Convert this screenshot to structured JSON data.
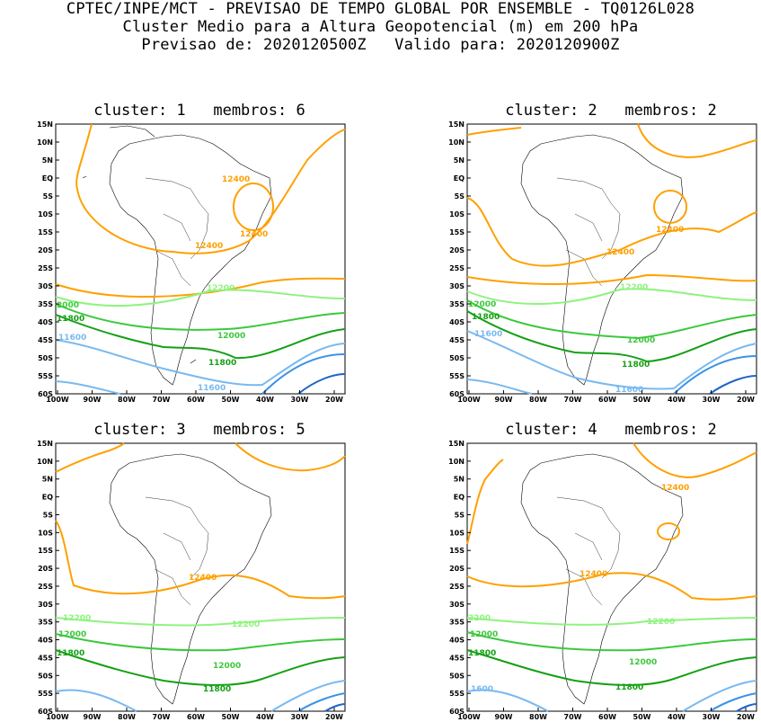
{
  "header": {
    "line1": "CPTEC/INPE/MCT - PREVISAO DE TEMPO GLOBAL POR ENSEMBLE - TQ0126L028",
    "line2": "Cluster Medio para a Altura Geopotencial (m) em 200 hPa",
    "line3": "Previsao de: 2020120500Z   Valido para: 2020120900Z"
  },
  "axes": {
    "lat_labels": [
      "15N",
      "10N",
      "5N",
      "EQ",
      "5S",
      "10S",
      "15S",
      "20S",
      "25S",
      "30S",
      "35S",
      "40S",
      "45S",
      "50S",
      "55S",
      "60S"
    ],
    "lon_labels": [
      "100W",
      "90W",
      "80W",
      "70W",
      "60W",
      "50W",
      "40W",
      "30W",
      "20W"
    ]
  },
  "contour_colors": {
    "c12400": "#ffa000",
    "c12200": "#8ef37e",
    "c12000": "#3cc83c",
    "c11800": "#14a014",
    "c11600": "#78b9f0",
    "c11400": "#3c91e6",
    "c11200": "#1e64c8"
  },
  "panels": [
    {
      "title": "cluster: 1   membros: 6",
      "labels": [
        {
          "text": "12400",
          "color": "#ffa000"
        },
        {
          "text": "12400",
          "color": "#ffa000"
        },
        {
          "text": "12400",
          "color": "#ffa000"
        },
        {
          "text": "12200",
          "color": "#8ef37e"
        },
        {
          "text": "2000",
          "color": "#3cc83c"
        },
        {
          "text": "12000",
          "color": "#3cc83c"
        },
        {
          "text": "11800",
          "color": "#14a014"
        },
        {
          "text": "11800",
          "color": "#14a014"
        },
        {
          "text": "11600",
          "color": "#78b9f0"
        },
        {
          "text": "11600",
          "color": "#78b9f0"
        }
      ]
    },
    {
      "title": "cluster: 2   membros: 2",
      "labels": [
        {
          "text": "12400",
          "color": "#ffa000"
        },
        {
          "text": "12400",
          "color": "#ffa000"
        },
        {
          "text": "12200",
          "color": "#8ef37e"
        },
        {
          "text": "12000",
          "color": "#3cc83c"
        },
        {
          "text": "12000",
          "color": "#3cc83c"
        },
        {
          "text": "11800",
          "color": "#14a014"
        },
        {
          "text": "11800",
          "color": "#14a014"
        },
        {
          "text": "11600",
          "color": "#78b9f0"
        },
        {
          "text": "11600",
          "color": "#78b9f0"
        }
      ]
    },
    {
      "title": "cluster: 3   membros: 5",
      "labels": [
        {
          "text": "12400",
          "color": "#ffa000"
        },
        {
          "text": "12200",
          "color": "#8ef37e"
        },
        {
          "text": "12200",
          "color": "#8ef37e"
        },
        {
          "text": "12000",
          "color": "#3cc83c"
        },
        {
          "text": "12000",
          "color": "#3cc83c"
        },
        {
          "text": "11800",
          "color": "#14a014"
        },
        {
          "text": "11800",
          "color": "#14a014"
        }
      ]
    },
    {
      "title": "cluster: 4   membros: 2",
      "labels": [
        {
          "text": "12400",
          "color": "#ffa000"
        },
        {
          "text": "12400",
          "color": "#ffa000"
        },
        {
          "text": "2200",
          "color": "#8ef37e"
        },
        {
          "text": "12200",
          "color": "#8ef37e"
        },
        {
          "text": "12000",
          "color": "#3cc83c"
        },
        {
          "text": "12000",
          "color": "#3cc83c"
        },
        {
          "text": "11800",
          "color": "#14a014"
        },
        {
          "text": "11800",
          "color": "#14a014"
        },
        {
          "text": "1600",
          "color": "#78b9f0"
        }
      ]
    }
  ]
}
